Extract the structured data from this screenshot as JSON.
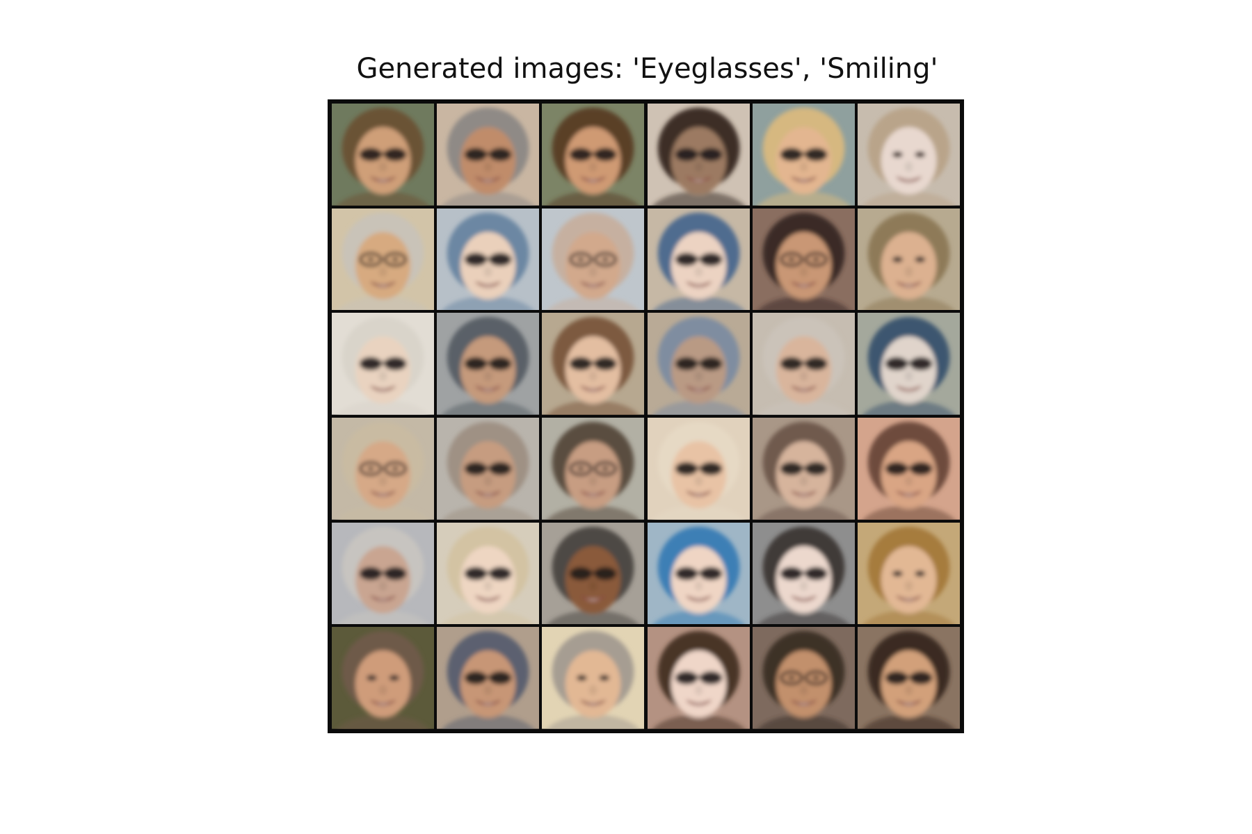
{
  "figure": {
    "title": "Generated images: 'Eyeglasses', 'Smiling'"
  },
  "grid": {
    "rows": 6,
    "cols": 6,
    "content": "generated face thumbnails",
    "cells": [
      {
        "bg": "#6f7a5e",
        "hair": "#6b5236",
        "skin": "#cf9f78",
        "glasses": "dark"
      },
      {
        "bg": "#c9b6a2",
        "hair": "#8f8a86",
        "skin": "#c08c6a",
        "glasses": "dark"
      },
      {
        "bg": "#7c8466",
        "hair": "#5a4028",
        "skin": "#cf9a73",
        "glasses": "dark"
      },
      {
        "bg": "#cfc2b4",
        "hair": "#3c2f27",
        "skin": "#9c7a62",
        "glasses": "dark"
      },
      {
        "bg": "#8fa09e",
        "hair": "#d6b880",
        "skin": "#e3b690",
        "glasses": "dark"
      },
      {
        "bg": "#c7bcae",
        "hair": "#b9a48a",
        "skin": "#e8d8cf",
        "glasses": "none"
      },
      {
        "bg": "#d2c4a8",
        "hair": "#c9c3b8",
        "skin": "#d7aa80",
        "glasses": "clear"
      },
      {
        "bg": "#b7c0c8",
        "hair": "#6c87a3",
        "skin": "#ead0bb",
        "glasses": "dark"
      },
      {
        "bg": "#bfc6cc",
        "hair": "#c6b0a0",
        "skin": "#d2a98c",
        "glasses": "clear"
      },
      {
        "bg": "#c6b8a5",
        "hair": "#4f6c8f",
        "skin": "#ecd3c2",
        "glasses": "dark"
      },
      {
        "bg": "#8a6e60",
        "hair": "#3a2b25",
        "skin": "#c99774",
        "glasses": "clear"
      },
      {
        "bg": "#b7aa90",
        "hair": "#8e7a58",
        "skin": "#dcb190",
        "glasses": "none"
      },
      {
        "bg": "#e2ddd4",
        "hair": "#d9d4ca",
        "skin": "#e9d3c0",
        "glasses": "dark"
      },
      {
        "bg": "#9fa2a3",
        "hair": "#5a6068",
        "skin": "#c59a7c",
        "glasses": "dark"
      },
      {
        "bg": "#b7a890",
        "hair": "#7d5a3f",
        "skin": "#e3bea1",
        "glasses": "dark"
      },
      {
        "bg": "#b9aa96",
        "hair": "#7f8da0",
        "skin": "#b99a84",
        "glasses": "dark"
      },
      {
        "bg": "#c6bdb1",
        "hair": "#cbc3b9",
        "skin": "#d9b59c",
        "glasses": "dark"
      },
      {
        "bg": "#a4a89c",
        "hair": "#3e5670",
        "skin": "#e0d4cb",
        "glasses": "dark"
      },
      {
        "bg": "#c4b9a6",
        "hair": "#c9bba2",
        "skin": "#d6a987",
        "glasses": "clear"
      },
      {
        "bg": "#b9b4ac",
        "hair": "#9f9184",
        "skin": "#c69c80",
        "glasses": "dark"
      },
      {
        "bg": "#b2b0a4",
        "hair": "#5a4d40",
        "skin": "#c79d82",
        "glasses": "clear"
      },
      {
        "bg": "#e1d2bd",
        "hair": "#e6d9c4",
        "skin": "#e8c3a5",
        "glasses": "dark"
      },
      {
        "bg": "#a99787",
        "hair": "#6f5a4e",
        "skin": "#d6b49c",
        "glasses": "dark"
      },
      {
        "bg": "#d4a48c",
        "hair": "#6e4c3c",
        "skin": "#d9a584",
        "glasses": "dark"
      },
      {
        "bg": "#b7b8bc",
        "hair": "#c7c4c0",
        "skin": "#c9a591",
        "glasses": "dark"
      },
      {
        "bg": "#d6cdbb",
        "hair": "#d3c3a3",
        "skin": "#eed6c2",
        "glasses": "dark"
      },
      {
        "bg": "#a6a097",
        "hair": "#4d4844",
        "skin": "#8a5a3a",
        "glasses": "dark"
      },
      {
        "bg": "#9fb6c6",
        "hair": "#3d7fb5",
        "skin": "#efd5c4",
        "glasses": "dark"
      },
      {
        "bg": "#8e8e8e",
        "hair": "#3f3a38",
        "skin": "#ecd8cd",
        "glasses": "dark"
      },
      {
        "bg": "#c4a878",
        "hair": "#a67b3e",
        "skin": "#e2b894",
        "glasses": "none"
      },
      {
        "bg": "#5c5a3a",
        "hair": "#6e5a48",
        "skin": "#cf9c7a",
        "glasses": "none"
      },
      {
        "bg": "#b09e8c",
        "hair": "#5c6070",
        "skin": "#c79676",
        "glasses": "dark"
      },
      {
        "bg": "#e2d4b4",
        "hair": "#a69d92",
        "skin": "#e2b894",
        "glasses": "none"
      },
      {
        "bg": "#b49282",
        "hair": "#4a3428",
        "skin": "#efd6c8",
        "glasses": "dark"
      },
      {
        "bg": "#7e6a5e",
        "hair": "#3d3026",
        "skin": "#c2906c",
        "glasses": "clear"
      },
      {
        "bg": "#8a7462",
        "hair": "#3a2a22",
        "skin": "#d2a07a",
        "glasses": "dark"
      }
    ]
  }
}
